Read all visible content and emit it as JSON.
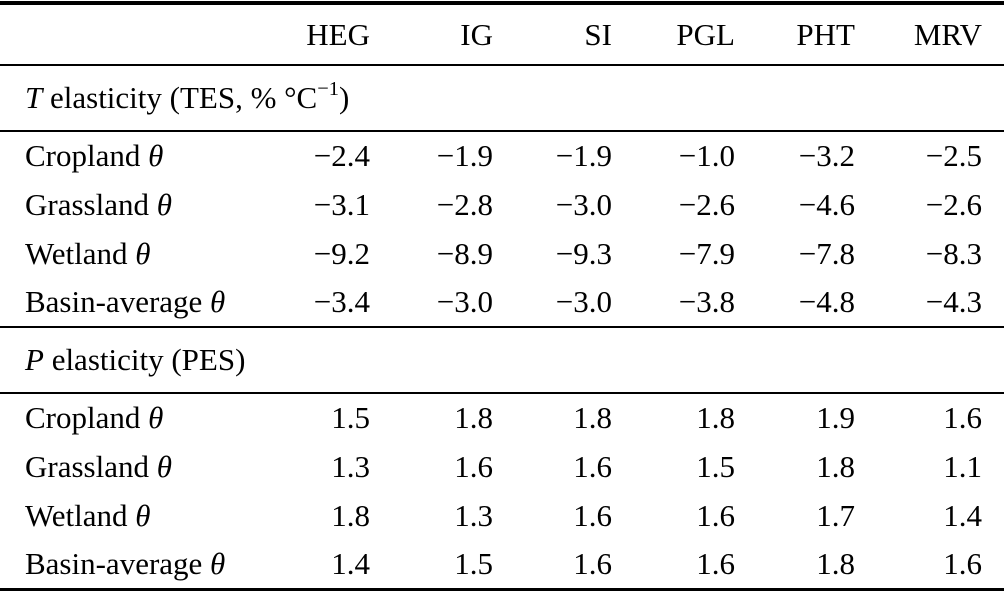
{
  "table": {
    "theta": "θ",
    "columns": [
      "",
      "HEG",
      "IG",
      "SI",
      "PGL",
      "PHT",
      "MRV"
    ],
    "sections": [
      {
        "title": {
          "prefix": "T",
          "main": " elasticity (TES, % °C",
          "sup": "−1",
          "suffix": ")"
        },
        "rows": [
          {
            "label": "Cropland",
            "values": [
              "−2.4",
              "−1.9",
              "−1.9",
              "−1.0",
              "−3.2",
              "−2.5"
            ]
          },
          {
            "label": "Grassland",
            "values": [
              "−3.1",
              "−2.8",
              "−3.0",
              "−2.6",
              "−4.6",
              "−2.6"
            ]
          },
          {
            "label": "Wetland",
            "values": [
              "−9.2",
              "−8.9",
              "−9.3",
              "−7.9",
              "−7.8",
              "−8.3"
            ]
          },
          {
            "label": "Basin-average",
            "values": [
              "−3.4",
              "−3.0",
              "−3.0",
              "−3.8",
              "−4.8",
              "−4.3"
            ]
          }
        ]
      },
      {
        "title": {
          "prefix": "P",
          "main": " elasticity (PES)",
          "sup": "",
          "suffix": ""
        },
        "rows": [
          {
            "label": "Cropland",
            "values": [
              "1.5",
              "1.8",
              "1.8",
              "1.8",
              "1.9",
              "1.6"
            ]
          },
          {
            "label": "Grassland",
            "values": [
              "1.3",
              "1.6",
              "1.6",
              "1.5",
              "1.8",
              "1.1"
            ]
          },
          {
            "label": "Wetland",
            "values": [
              "1.8",
              "1.3",
              "1.6",
              "1.6",
              "1.7",
              "1.4"
            ]
          },
          {
            "label": "Basin-average",
            "values": [
              "1.4",
              "1.5",
              "1.6",
              "1.6",
              "1.8",
              "1.6"
            ]
          }
        ]
      }
    ]
  }
}
